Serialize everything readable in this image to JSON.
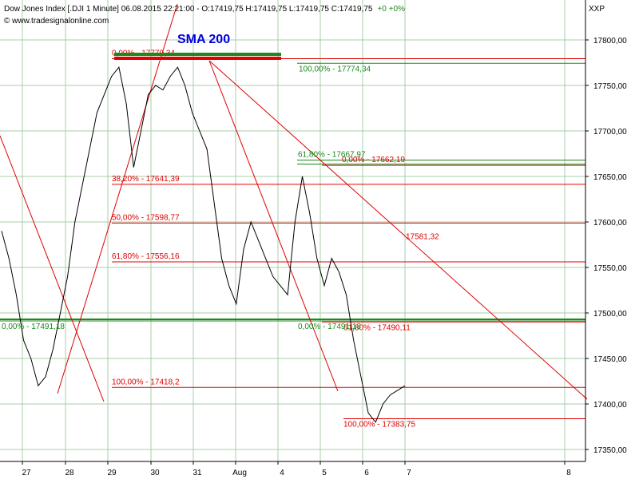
{
  "header": {
    "title_line": "Dow Jones Index [.DJI   1 Minute] 06.08.2015 22:21:00 - O:17419,75 H:17419,75 L:17419,75 C:17419,75",
    "change": "+0 +0%",
    "source": "© www.tradesignalonline.com",
    "axis_symbol": "XXP"
  },
  "chart_data": {
    "type": "line",
    "title": "Dow Jones Index [.DJI 1 Minute]",
    "y_ticks": [
      "17800,00",
      "17750,00",
      "17700,00",
      "17650,00",
      "17600,00",
      "17550,00",
      "17500,00",
      "17450,00",
      "17400,00",
      "17350,00"
    ],
    "y_tick_values": [
      17800,
      17750,
      17700,
      17650,
      17600,
      17550,
      17500,
      17450,
      17400,
      17350
    ],
    "ylim": [
      17340,
      17830
    ],
    "x_ticks": [
      "27",
      "28",
      "29",
      "30",
      "31",
      "Aug",
      "4",
      "5",
      "6",
      "7",
      "8"
    ],
    "grid": true,
    "series": [
      {
        "values": [
          17590,
          17560,
          17520,
          17470,
          17450,
          17420,
          17430,
          17460,
          17500,
          17540,
          17600,
          17640,
          17680,
          17720,
          17740,
          17760,
          17770,
          17730,
          17660,
          17700,
          17740,
          17750,
          17745,
          17760,
          17770,
          17750,
          17720,
          17700,
          17680,
          17620,
          17560,
          17530,
          17510,
          17570,
          17600,
          17580,
          17560,
          17540,
          17530,
          17520,
          17600,
          17650,
          17610,
          17560,
          17530,
          17560,
          17545,
          17520,
          17470,
          17430,
          17390,
          17380,
          17400,
          17410,
          17415,
          17420
        ]
      }
    ],
    "fib_labels": [
      {
        "text": "0,00% - 17779,34",
        "value": 17779.34,
        "color": "#e00000"
      },
      {
        "text": "38,20% - 17641,39",
        "value": 17641.39,
        "color": "#e00000"
      },
      {
        "text": "50,00% - 17598,77",
        "value": 17598.77,
        "color": "#e00000"
      },
      {
        "text": "61,80% - 17556,16",
        "value": 17556.16,
        "color": "#e00000"
      },
      {
        "text": "100,00% - 17418,2",
        "value": 17418.2,
        "color": "#e00000"
      },
      {
        "text": "0,00% - 17662,19",
        "value": 17662.19,
        "color": "#e00000"
      },
      {
        "text": "61,80% - 17490,11",
        "value": 17490.11,
        "color": "#e00000"
      },
      {
        "text": "100,00% - 17383,75",
        "value": 17383.75,
        "color": "#e00000"
      },
      {
        "text": "17581,32",
        "value": 17581.32,
        "color": "#e00000"
      },
      {
        "text": "100,00% - 17774,34",
        "value": 17774.34,
        "color": "#1a8a1a"
      },
      {
        "text": "61,80% - 17667,97",
        "value": 17667.97,
        "color": "#1a8a1a"
      },
      {
        "text": "0,00% - 17491,18",
        "value": 17491.18,
        "color": "#1a8a1a"
      },
      {
        "text": "0,00% - 17491,18",
        "value": 17491.18,
        "color": "#1a8a1a"
      }
    ],
    "annotation": "SMA 200",
    "colors": {
      "price": "#000000",
      "fib_red": "#e00000",
      "fib_green": "#1a8a1a",
      "sma_label": "#0000e0",
      "grid": "#a8cca8"
    }
  }
}
